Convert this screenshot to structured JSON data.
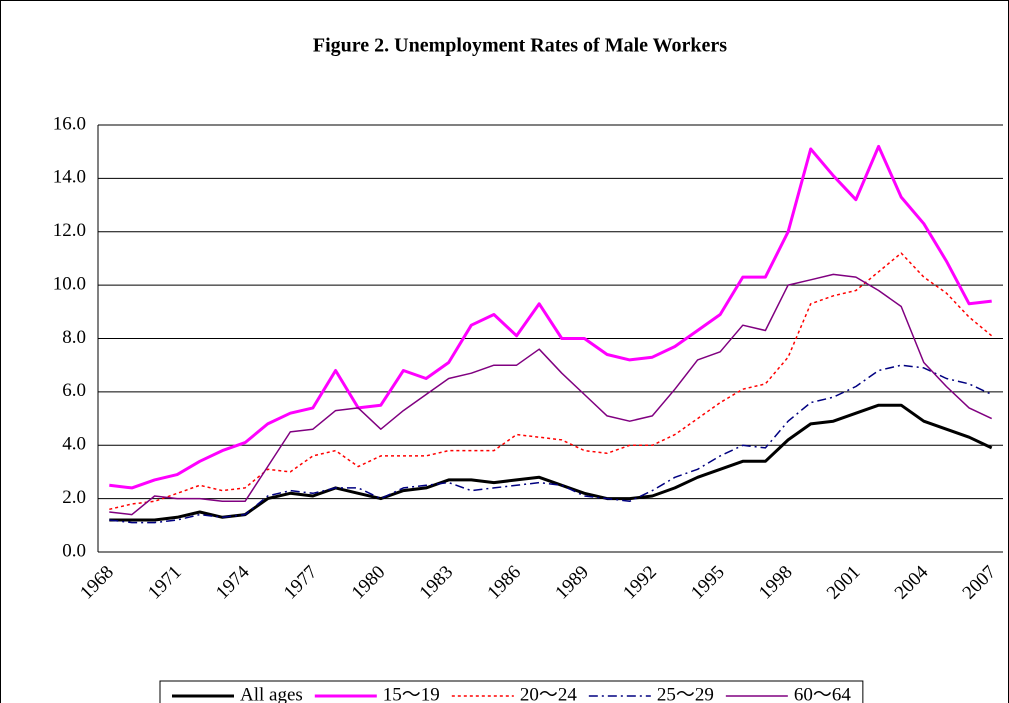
{
  "chart_data": {
    "type": "line",
    "title": "Figure 2.   Unemployment Rates of Male Workers",
    "categories": [
      "1968",
      null,
      null,
      "1971",
      null,
      null,
      "1974",
      null,
      null,
      "1977",
      null,
      null,
      "1980",
      null,
      null,
      "1983",
      null,
      null,
      "1986",
      null,
      null,
      "1989",
      null,
      null,
      "1992",
      null,
      null,
      "1995",
      null,
      null,
      "1998",
      null,
      null,
      "2001",
      null,
      null,
      "2004",
      null,
      null,
      "2007"
    ],
    "ylim": [
      0,
      16
    ],
    "yticks": [
      {
        "value": 0,
        "label": "0.0"
      },
      {
        "value": 2,
        "label": "2.0"
      },
      {
        "value": 4,
        "label": "4.0"
      },
      {
        "value": 6,
        "label": "6.0"
      },
      {
        "value": 8,
        "label": "8.0"
      },
      {
        "value": 10,
        "label": "10.0"
      },
      {
        "value": 12,
        "label": "12.0"
      },
      {
        "value": 14,
        "label": "14.0"
      },
      {
        "value": 16,
        "label": "16.0"
      }
    ],
    "grid": true,
    "legend": "bottom",
    "series": [
      {
        "name": "All ages",
        "color": "#000000",
        "dash": "solid",
        "linewidth": 3,
        "values": [
          1.2,
          1.2,
          1.2,
          1.3,
          1.5,
          1.3,
          1.4,
          2.0,
          2.2,
          2.1,
          2.4,
          2.2,
          2.0,
          2.3,
          2.4,
          2.7,
          2.7,
          2.6,
          2.7,
          2.8,
          2.5,
          2.2,
          2.0,
          2.0,
          2.1,
          2.4,
          2.8,
          3.1,
          3.4,
          3.4,
          4.2,
          4.8,
          4.9,
          5.2,
          5.5,
          5.5,
          4.9,
          4.6,
          4.3,
          3.9
        ]
      },
      {
        "name": "15～19",
        "color": "#ff00ff",
        "dash": "solid",
        "linewidth": 3,
        "values": [
          2.5,
          2.4,
          2.7,
          2.9,
          3.4,
          3.8,
          4.1,
          4.8,
          5.2,
          5.4,
          6.8,
          5.4,
          5.5,
          6.8,
          6.5,
          7.1,
          8.5,
          8.9,
          8.1,
          9.3,
          8.0,
          8.0,
          7.4,
          7.2,
          7.3,
          7.7,
          8.3,
          8.9,
          10.3,
          10.3,
          12.0,
          15.1,
          14.1,
          13.2,
          15.2,
          13.3,
          12.3,
          10.9,
          9.3,
          9.4
        ]
      },
      {
        "name": "20～24",
        "color": "#ff0000",
        "dash": "dotted",
        "linewidth": 1.5,
        "values": [
          1.6,
          1.8,
          1.9,
          2.2,
          2.5,
          2.3,
          2.4,
          3.1,
          3.0,
          3.6,
          3.8,
          3.2,
          3.6,
          3.6,
          3.6,
          3.8,
          3.8,
          3.8,
          4.4,
          4.3,
          4.2,
          3.8,
          3.7,
          4.0,
          4.0,
          4.4,
          5.0,
          5.6,
          6.1,
          6.3,
          7.3,
          9.3,
          9.6,
          9.8,
          10.5,
          11.2,
          10.3,
          9.7,
          8.8,
          8.1
        ]
      },
      {
        "name": "25～29",
        "color": "#000080",
        "dash": "dashdot",
        "linewidth": 1.5,
        "values": [
          1.2,
          1.1,
          1.1,
          1.2,
          1.4,
          1.3,
          1.4,
          2.1,
          2.3,
          2.2,
          2.4,
          2.4,
          2.0,
          2.4,
          2.5,
          2.6,
          2.3,
          2.4,
          2.5,
          2.6,
          2.5,
          2.1,
          2.0,
          1.9,
          2.3,
          2.8,
          3.1,
          3.6,
          4.0,
          3.9,
          4.9,
          5.6,
          5.8,
          6.2,
          6.8,
          7.0,
          6.9,
          6.5,
          6.3,
          5.9
        ]
      },
      {
        "name": "60～64",
        "color": "#800080",
        "dash": "solid",
        "linewidth": 1.5,
        "values": [
          1.5,
          1.4,
          2.1,
          2.0,
          2.0,
          1.9,
          1.9,
          3.2,
          4.5,
          4.6,
          5.3,
          5.4,
          4.6,
          5.3,
          5.9,
          6.5,
          6.7,
          7.0,
          7.0,
          7.6,
          6.7,
          5.9,
          5.1,
          4.9,
          5.1,
          6.1,
          7.2,
          7.5,
          8.5,
          8.3,
          10.0,
          10.2,
          10.4,
          10.3,
          9.8,
          9.2,
          7.1,
          6.2,
          5.4,
          5.0
        ]
      }
    ]
  }
}
